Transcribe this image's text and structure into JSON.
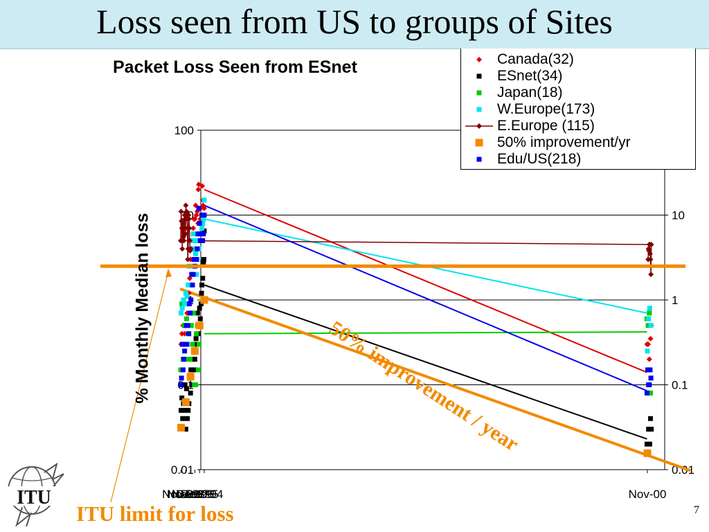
{
  "slide": {
    "title": "Loss seen from US to groups of Sites",
    "page_number": "7",
    "itu_limit_label": "ITU limit for loss",
    "improvement_label": "50% improvement / year",
    "logo_text": "ITU"
  },
  "chart_data": {
    "type": "scatter",
    "title": "Packet Loss Seen from ESnet",
    "ylabel": "% Monthly Median loss",
    "xlabel": "",
    "y_scale": "log",
    "ylim": [
      0.01,
      100
    ],
    "y_ticks": [
      "100",
      "10",
      "1",
      "0.1",
      "0.01"
    ],
    "x_ticks": [
      "Dec-94",
      "Dec-95",
      "Dec-96",
      "Nov-97",
      "Nov-98",
      "Nov-99",
      "Nov-00"
    ],
    "grid": true,
    "legend_position": "top-right",
    "itu_limit": 2.5,
    "series": [
      {
        "name": "Canada(32)",
        "marker": "diamond",
        "color": "#e00000",
        "points": [
          [
            "Dec-94",
            12
          ],
          [
            "Jan-95",
            10
          ],
          [
            "Mar-95",
            13
          ],
          [
            "Apr-95",
            15
          ],
          [
            "May-95",
            22
          ],
          [
            "Jul-95",
            10
          ],
          [
            "Sep-95",
            12
          ],
          [
            "Oct-95",
            9
          ],
          [
            "Dec-95",
            12
          ],
          [
            "Jan-96",
            8
          ],
          [
            "Feb-96",
            23
          ],
          [
            "Mar-96",
            20
          ],
          [
            "Apr-96",
            8
          ],
          [
            "Jun-96",
            11
          ],
          [
            "Aug-96",
            10
          ],
          [
            "Oct-96",
            13
          ],
          [
            "Dec-96",
            9
          ],
          [
            "Feb-97",
            9
          ],
          [
            "Apr-97",
            7
          ],
          [
            "Jun-97",
            4
          ],
          [
            "Aug-97",
            5
          ],
          [
            "Nov-97",
            3
          ],
          [
            "Jan-98",
            1.8
          ],
          [
            "Mar-98",
            1.2
          ],
          [
            "Jun-98",
            0.9
          ],
          [
            "Aug-98",
            0.7
          ],
          [
            "Oct-98",
            0.5
          ],
          [
            "Dec-98",
            0.5
          ],
          [
            "Feb-99",
            0.4
          ],
          [
            "Apr-99",
            0.3
          ],
          [
            "Jun-99",
            0.5
          ],
          [
            "Sep-99",
            0.4
          ],
          [
            "Nov-99",
            0.3
          ],
          [
            "Jan-00",
            0.5
          ],
          [
            "Mar-00",
            0.35
          ],
          [
            "Jun-00",
            0.2
          ],
          [
            "Sep-00",
            0.3
          ],
          [
            "Dec-00",
            0.3
          ]
        ],
        "fit": [
          [
            "Dec-94",
            20
          ],
          [
            "Dec-00",
            0.14
          ]
        ]
      },
      {
        "name": "ESnet(34)",
        "marker": "square",
        "color": "#000000",
        "points": [
          [
            "Dec-94",
            6.5
          ],
          [
            "Jan-95",
            3
          ],
          [
            "Feb-95",
            2.8
          ],
          [
            "Apr-95",
            1.8
          ],
          [
            "Jun-95",
            1.5
          ],
          [
            "Jul-95",
            1.2
          ],
          [
            "Aug-95",
            0.9
          ],
          [
            "Oct-95",
            0.6
          ],
          [
            "Dec-95",
            0.8
          ],
          [
            "Feb-96",
            0.5
          ],
          [
            "Apr-96",
            0.4
          ],
          [
            "May-96",
            0.7
          ],
          [
            "Jul-96",
            0.3
          ],
          [
            "Sep-96",
            0.35
          ],
          [
            "Oct-96",
            0.25
          ],
          [
            "Dec-96",
            0.2
          ],
          [
            "Feb-97",
            0.15
          ],
          [
            "Apr-97",
            0.1
          ],
          [
            "Jun-97",
            0.2
          ],
          [
            "Aug-97",
            0.1
          ],
          [
            "Oct-97",
            0.15
          ],
          [
            "Nov-97",
            0.08
          ],
          [
            "Jan-98",
            0.12
          ],
          [
            "Mar-98",
            0.06
          ],
          [
            "May-98",
            0.05
          ],
          [
            "Jul-98",
            0.04
          ],
          [
            "Sep-98",
            0.09
          ],
          [
            "Nov-98",
            0.03
          ],
          [
            "Jan-99",
            0.1
          ],
          [
            "Mar-99",
            0.05
          ],
          [
            "May-99",
            0.06
          ],
          [
            "Jul-99",
            0.04
          ],
          [
            "Sep-99",
            0.07
          ],
          [
            "Nov-99",
            0.05
          ],
          [
            "Jan-00",
            0.03
          ],
          [
            "Mar-00",
            0.04
          ],
          [
            "May-00",
            0.02
          ],
          [
            "Aug-00",
            0.03
          ],
          [
            "Oct-00",
            0.08
          ],
          [
            "Dec-00",
            0.02
          ]
        ],
        "fit": [
          [
            "Dec-94",
            1.5
          ],
          [
            "Dec-00",
            0.023
          ]
        ]
      },
      {
        "name": "Japan(18)",
        "marker": "square",
        "color": "#00cc00",
        "points": [
          [
            "Jan-96",
            0.3
          ],
          [
            "Mar-96",
            0.15
          ],
          [
            "May-96",
            0.5
          ],
          [
            "Aug-96",
            0.4
          ],
          [
            "Oct-96",
            0.1
          ],
          [
            "Jan-97",
            0.1
          ],
          [
            "Mar-97",
            0.7
          ],
          [
            "Jun-97",
            0.3
          ],
          [
            "Sep-97",
            0.5
          ],
          [
            "Dec-97",
            0.2
          ],
          [
            "Mar-98",
            0.4
          ],
          [
            "Jun-98",
            0.2
          ],
          [
            "Sep-98",
            0.6
          ],
          [
            "Dec-98",
            0.9
          ],
          [
            "Mar-99",
            0.5
          ],
          [
            "Jun-99",
            0.2
          ],
          [
            "Sep-99",
            0.9
          ],
          [
            "Dec-99",
            0.15
          ],
          [
            "Mar-00",
            0.08
          ],
          [
            "Jun-00",
            0.7
          ],
          [
            "Sep-00",
            0.5
          ],
          [
            "Dec-00",
            0.6
          ]
        ],
        "fit": [
          [
            "Dec-94",
            0.4
          ],
          [
            "Dec-00",
            0.42
          ]
        ]
      },
      {
        "name": "W.Europe(173)",
        "marker": "square",
        "color": "#00e5ee",
        "points": [
          [
            "Dec-94",
            15
          ],
          [
            "Feb-95",
            9
          ],
          [
            "Apr-95",
            8
          ],
          [
            "Jun-95",
            7
          ],
          [
            "Aug-95",
            6
          ],
          [
            "Oct-95",
            5
          ],
          [
            "Dec-95",
            6
          ],
          [
            "Feb-96",
            4
          ],
          [
            "Apr-96",
            5
          ],
          [
            "Jun-96",
            3
          ],
          [
            "Aug-96",
            2
          ],
          [
            "Oct-96",
            3.5
          ],
          [
            "Dec-96",
            4
          ],
          [
            "Feb-97",
            5
          ],
          [
            "Apr-97",
            6
          ],
          [
            "Jun-97",
            4
          ],
          [
            "Aug-97",
            5
          ],
          [
            "Nov-97",
            4
          ],
          [
            "Feb-98",
            2.5
          ],
          [
            "May-98",
            1.5
          ],
          [
            "Aug-98",
            1.1
          ],
          [
            "Nov-98",
            1.2
          ],
          [
            "Feb-99",
            0.9
          ],
          [
            "May-99",
            1
          ],
          [
            "Aug-99",
            0.8
          ],
          [
            "Nov-99",
            0.7
          ],
          [
            "Feb-00",
            0.5
          ],
          [
            "May-00",
            0.8
          ],
          [
            "Aug-00",
            0.6
          ],
          [
            "Nov-00",
            0.25
          ]
        ],
        "fit": [
          [
            "Dec-94",
            9
          ],
          [
            "Dec-00",
            0.7
          ]
        ]
      },
      {
        "name": "E.Europe (115)",
        "marker": "diamond",
        "color": "#800000",
        "line": true,
        "points": [
          [
            "Oct-97",
            4
          ],
          [
            "Nov-97",
            4
          ],
          [
            "Dec-97",
            3.8
          ],
          [
            "Jan-98",
            5
          ],
          [
            "Feb-98",
            7
          ],
          [
            "Mar-98",
            9
          ],
          [
            "Apr-98",
            10
          ],
          [
            "May-98",
            4
          ],
          [
            "Jun-98",
            3
          ],
          [
            "Jul-98",
            7
          ],
          [
            "Aug-98",
            9
          ],
          [
            "Sep-98",
            11
          ],
          [
            "Oct-98",
            10
          ],
          [
            "Nov-98",
            13
          ],
          [
            "Dec-98",
            6
          ],
          [
            "Jan-99",
            9
          ],
          [
            "Feb-99",
            10
          ],
          [
            "Mar-99",
            7
          ],
          [
            "Apr-99",
            5
          ],
          [
            "May-99",
            5.5
          ],
          [
            "Jun-99",
            8
          ],
          [
            "Jul-99",
            7
          ],
          [
            "Aug-99",
            4
          ],
          [
            "Sep-99",
            7
          ],
          [
            "Oct-99",
            8.5
          ],
          [
            "Nov-99",
            11
          ],
          [
            "Dec-99",
            5
          ],
          [
            "Jan-00",
            4.5
          ],
          [
            "Feb-00",
            2
          ],
          [
            "Mar-00",
            3
          ],
          [
            "Apr-00",
            3.5
          ],
          [
            "May-00",
            4.5
          ],
          [
            "Jun-00",
            4.5
          ],
          [
            "Jul-00",
            3.8
          ],
          [
            "Aug-00",
            4
          ],
          [
            "Sep-00",
            3
          ]
        ]
      },
      {
        "name": "50% improvement/yr",
        "marker": "square",
        "color": "#f28a00",
        "line": true,
        "points": [
          [
            "Dec-94",
            1
          ],
          [
            "Dec-95",
            0.5
          ],
          [
            "Dec-96",
            0.25
          ],
          [
            "Nov-97",
            0.125
          ],
          [
            "Nov-98",
            0.0625
          ],
          [
            "Nov-99",
            0.03125
          ],
          [
            "Nov-00",
            0.015625
          ]
        ]
      },
      {
        "name": "Edu/US(218)",
        "marker": "square",
        "color": "#0000ee",
        "points": [
          [
            "Dec-94",
            10
          ],
          [
            "Feb-95",
            6
          ],
          [
            "Apr-95",
            5
          ],
          [
            "Jun-95",
            10
          ],
          [
            "Aug-95",
            6
          ],
          [
            "Oct-95",
            5
          ],
          [
            "Dec-95",
            8
          ],
          [
            "Feb-96",
            12
          ],
          [
            "Apr-96",
            6
          ],
          [
            "Jun-96",
            4
          ],
          [
            "Aug-96",
            3
          ],
          [
            "Oct-96",
            3
          ],
          [
            "Dec-96",
            2.5
          ],
          [
            "Feb-97",
            3
          ],
          [
            "Apr-97",
            2
          ],
          [
            "Jun-97",
            1.5
          ],
          [
            "Aug-97",
            2
          ],
          [
            "Oct-97",
            1
          ],
          [
            "Dec-97",
            0.7
          ],
          [
            "Feb-98",
            0.9
          ],
          [
            "Apr-98",
            0.4
          ],
          [
            "Jun-98",
            0.5
          ],
          [
            "Aug-98",
            0.3
          ],
          [
            "Oct-98",
            0.5
          ],
          [
            "Dec-98",
            0.3
          ],
          [
            "Feb-99",
            0.25
          ],
          [
            "Apr-99",
            0.2
          ],
          [
            "Jun-99",
            0.15
          ],
          [
            "Aug-99",
            0.3
          ],
          [
            "Oct-99",
            0.12
          ],
          [
            "Dec-99",
            0.1
          ],
          [
            "Feb-00",
            0.12
          ],
          [
            "Apr-00",
            0.15
          ],
          [
            "Jun-00",
            0.1
          ],
          [
            "Aug-00",
            0.1
          ],
          [
            "Oct-00",
            0.15
          ],
          [
            "Dec-00",
            0.08
          ]
        ],
        "fit": [
          [
            "Dec-94",
            13
          ],
          [
            "Dec-00",
            0.085
          ]
        ]
      }
    ]
  }
}
